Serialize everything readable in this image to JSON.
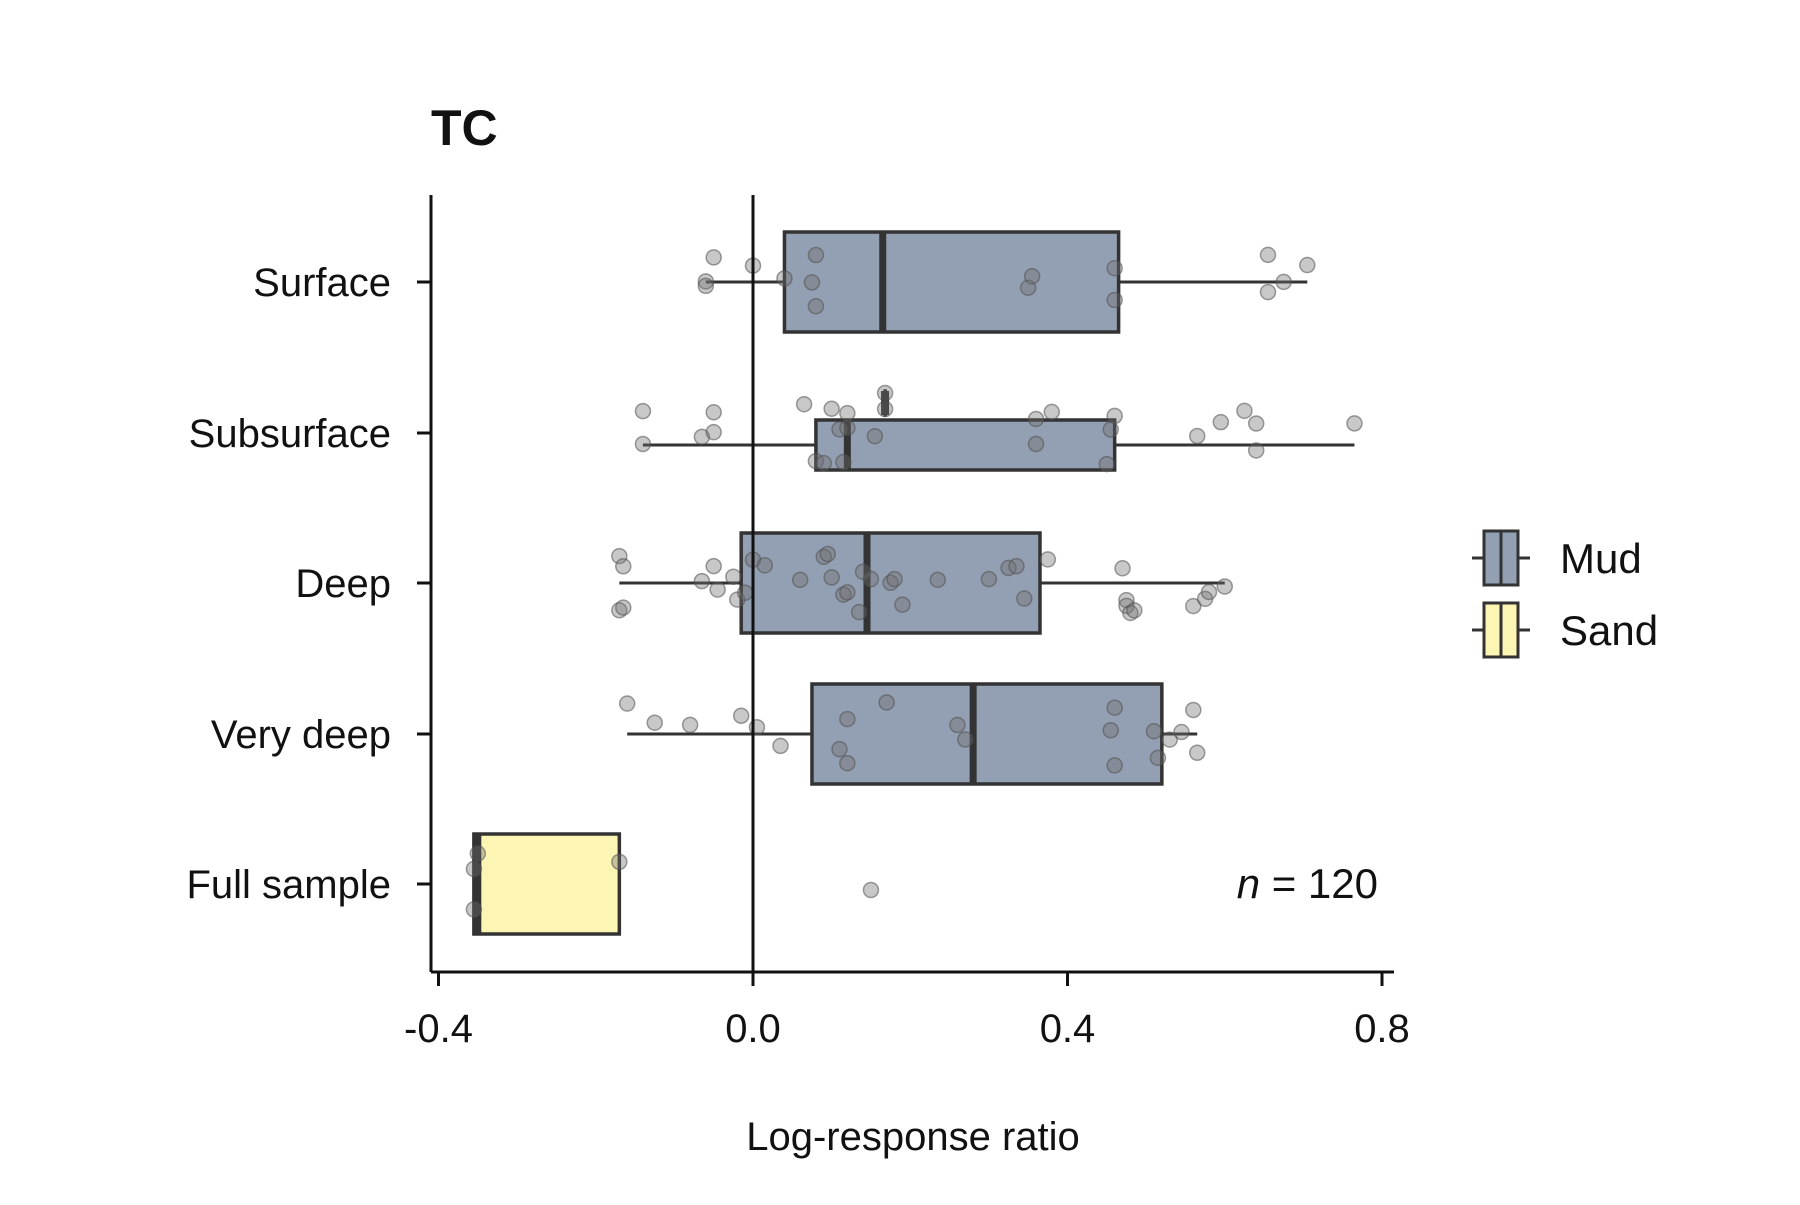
{
  "chart_data": {
    "type": "boxplot",
    "title": "TC",
    "xlabel": "Log-response ratio",
    "ylabel": "",
    "xlim": [
      -0.4,
      0.8
    ],
    "xticks": [
      "-0.4",
      "0.0",
      "0.4",
      "0.8"
    ],
    "xtick_values": [
      -0.4,
      0.0,
      0.4,
      0.8
    ],
    "reference_line": 0.0,
    "categories": [
      "Surface",
      "Subsurface",
      "Deep",
      "Very deep",
      "Full sample"
    ],
    "legend": {
      "placement": "right",
      "entries": [
        {
          "key": "mud",
          "label": "Mud",
          "color": "#939fb2"
        },
        {
          "key": "sand",
          "label": "Sand",
          "color": "#fdf5b4"
        }
      ]
    },
    "annotation": {
      "n_italic": "n",
      "n_rest": " = 120"
    },
    "groups": [
      {
        "category": "Surface",
        "type": "Mud",
        "whisker_low": -0.06,
        "q1": 0.04,
        "median": 0.165,
        "q3": 0.465,
        "whisker_high": 0.705,
        "points": [
          -0.06,
          -0.06,
          -0.05,
          0.0,
          0.04,
          0.075,
          0.08,
          0.08,
          0.35,
          0.355,
          0.46,
          0.46,
          0.655,
          0.655,
          0.675,
          0.705
        ]
      },
      {
        "category": "Subsurface",
        "type": "Mud",
        "whisker_low": -0.14,
        "q1": 0.08,
        "median": 0.12,
        "q3": 0.46,
        "whisker_high": 0.765,
        "points": [
          -0.14,
          -0.14,
          -0.065,
          -0.05,
          -0.05,
          0.065,
          0.08,
          0.09,
          0.1,
          0.11,
          0.115,
          0.12,
          0.12,
          0.155,
          0.36,
          0.36,
          0.38,
          0.45,
          0.455,
          0.46,
          0.565,
          0.595,
          0.625,
          0.64,
          0.64,
          0.765
        ]
      },
      {
        "category": "Subsurface",
        "type": "Mud",
        "outlier_box": true,
        "whisker_low": 0.168,
        "q1": 0.168,
        "median": 0.168,
        "q3": 0.168,
        "whisker_high": 0.168,
        "points": [
          0.168,
          0.168
        ]
      },
      {
        "category": "Deep",
        "type": "Mud",
        "whisker_low": -0.17,
        "q1": -0.015,
        "median": 0.145,
        "q3": 0.365,
        "whisker_high": 0.6,
        "points": [
          -0.17,
          -0.17,
          -0.165,
          -0.165,
          -0.065,
          -0.05,
          -0.045,
          -0.025,
          -0.02,
          -0.01,
          0.0,
          0.015,
          0.06,
          0.09,
          0.095,
          0.1,
          0.115,
          0.12,
          0.135,
          0.14,
          0.15,
          0.175,
          0.18,
          0.19,
          0.235,
          0.3,
          0.325,
          0.335,
          0.345,
          0.375,
          0.47,
          0.475,
          0.475,
          0.48,
          0.485,
          0.56,
          0.575,
          0.58,
          0.6
        ]
      },
      {
        "category": "Very deep",
        "type": "Mud",
        "whisker_low": -0.16,
        "q1": 0.075,
        "median": 0.28,
        "q3": 0.52,
        "whisker_high": 0.565,
        "points": [
          -0.16,
          -0.125,
          -0.08,
          -0.015,
          0.005,
          0.035,
          0.11,
          0.12,
          0.12,
          0.17,
          0.26,
          0.27,
          0.455,
          0.46,
          0.46,
          0.51,
          0.515,
          0.53,
          0.545,
          0.56,
          0.565
        ]
      },
      {
        "category": "Full sample",
        "type": "Sand",
        "whisker_low": -0.355,
        "q1": -0.355,
        "median": -0.35,
        "q3": -0.17,
        "whisker_high": -0.17,
        "points": [
          -0.355,
          -0.355,
          -0.35,
          -0.17,
          0.15
        ]
      }
    ]
  }
}
